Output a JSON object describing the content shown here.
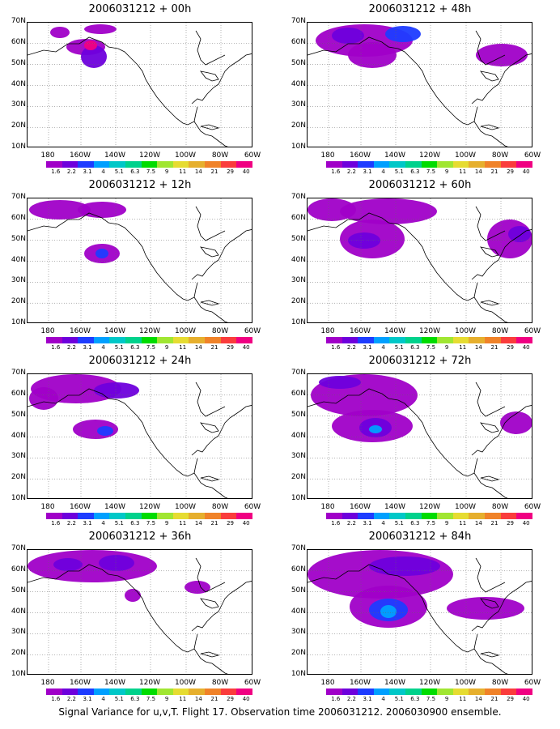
{
  "figure": {
    "caption": "Signal Variance for u,v,T. Flight 17. Observation time 2006031212. 2006030900 ensemble."
  },
  "panels": [
    {
      "title": "2006031212 + 00h"
    },
    {
      "title": "2006031212 + 48h"
    },
    {
      "title": "2006031212 + 12h"
    },
    {
      "title": "2006031212 + 60h"
    },
    {
      "title": "2006031212 + 24h"
    },
    {
      "title": "2006031212 + 72h"
    },
    {
      "title": "2006031212 + 36h"
    },
    {
      "title": "2006031212 + 84h"
    }
  ],
  "axes": {
    "lat_labels": [
      "70N",
      "60N",
      "50N",
      "40N",
      "30N",
      "20N",
      "10N"
    ],
    "lon_labels": [
      "180",
      "160W",
      "140W",
      "120W",
      "100W",
      "80W",
      "60W"
    ]
  },
  "colorbar": {
    "labels": [
      "1.6",
      "2.2",
      "3.1",
      "4",
      "5.1",
      "6.3",
      "7.5",
      "9",
      "11",
      "14",
      "21",
      "29",
      "40"
    ],
    "colors": [
      "#a000c8",
      "#6e00dc",
      "#1e3cff",
      "#00a0ff",
      "#00c8c8",
      "#00d28c",
      "#00dc00",
      "#a0e632",
      "#e6dc32",
      "#e6af2d",
      "#f08228",
      "#fa3c3c",
      "#f00082"
    ]
  }
}
